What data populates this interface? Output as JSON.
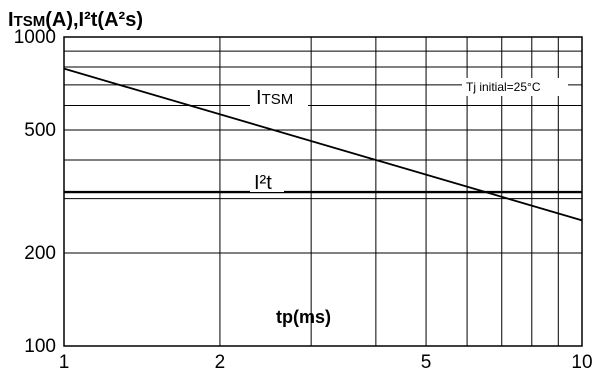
{
  "chart_data": {
    "type": "line",
    "title": "ITSM(A),I²t(A²s)",
    "xlabel": "tp(ms)",
    "ylabel": "",
    "x_scale": "log",
    "y_scale": "log",
    "xlim": [
      1,
      10
    ],
    "ylim": [
      100,
      1000
    ],
    "x_ticks": [
      {
        "value": 1,
        "label": "1"
      },
      {
        "value": 2,
        "label": "2"
      },
      {
        "value": 5,
        "label": "5"
      },
      {
        "value": 10,
        "label": "10"
      }
    ],
    "y_ticks": [
      {
        "value": 100,
        "label": "100"
      },
      {
        "value": 200,
        "label": "200"
      },
      {
        "value": 500,
        "label": "500"
      },
      {
        "value": 1000,
        "label": "1000"
      }
    ],
    "grid": true,
    "series": [
      {
        "name": "ITSM",
        "x": [
          1,
          10
        ],
        "y": [
          790,
          255
        ]
      },
      {
        "name": "I²t",
        "x": [
          1,
          10
        ],
        "y": [
          315,
          315
        ]
      }
    ],
    "annotations": [
      "Tj initial=25°C"
    ],
    "colors": {
      "line": "#000000",
      "grid": "#000000",
      "background": "#ffffff"
    }
  }
}
